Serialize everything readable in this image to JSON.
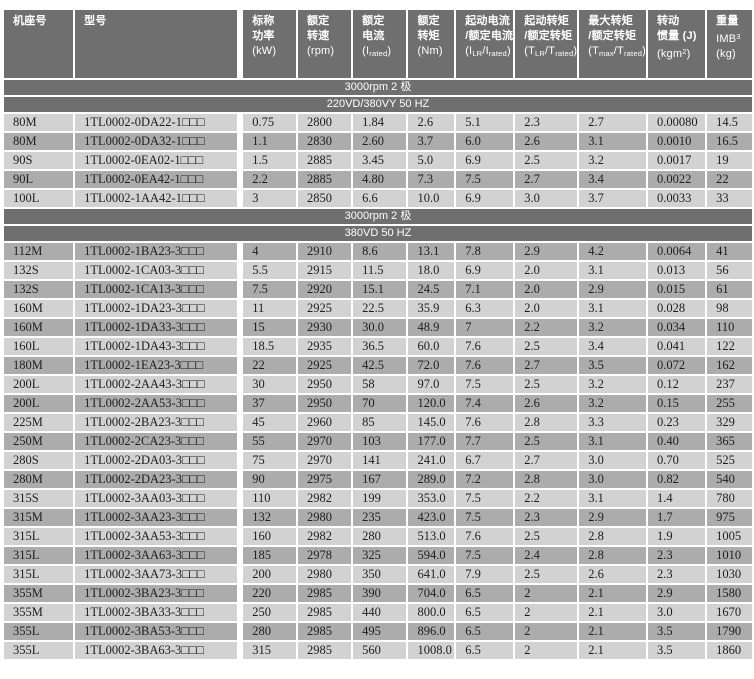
{
  "colors": {
    "header_bg": "#6f6f6f",
    "band_bg": "#6f6f6f",
    "row_light": "#d2d2d2",
    "row_dark": "#acacac",
    "header_text": "#ffffff",
    "data_text": "#1e1e1e",
    "page_bg": "#ffffff"
  },
  "table": {
    "columns": [
      {
        "id": "frame",
        "lines": [
          "机座号"
        ]
      },
      {
        "id": "model",
        "lines": [
          "型号"
        ]
      },
      {
        "id": "power-kw",
        "lines": [
          "标称",
          "功率",
          "(kW)"
        ]
      },
      {
        "id": "speed-rpm",
        "lines": [
          "额定",
          "转速",
          "(rpm)"
        ]
      },
      {
        "id": "current",
        "lines": [
          "额定",
          "电流",
          "(I_{rated})"
        ]
      },
      {
        "id": "torque-nm",
        "lines": [
          "额定",
          "转矩",
          "(Nm)"
        ]
      },
      {
        "id": "ilr-ratio",
        "lines": [
          "起动电流",
          "/额定电流",
          "(I_{LR}/I_{rated})"
        ]
      },
      {
        "id": "tlr-ratio",
        "lines": [
          "起动转矩",
          "/额定转矩",
          "(T_{LR}/T_{rated})"
        ]
      },
      {
        "id": "tmax-ratio",
        "lines": [
          "最大转矩",
          "/额定转矩",
          "(T_{max}/T_{rated})"
        ]
      },
      {
        "id": "inertia",
        "lines": [
          "转动",
          "惯量 (J)",
          "(kgm^{2})"
        ]
      },
      {
        "id": "weight",
        "lines": [
          "重量",
          "IMB^{3}",
          "(kg)"
        ]
      }
    ],
    "sections": [
      {
        "bands": [
          "3000rpm 2 极",
          "220VD/380VY  50 HZ"
        ],
        "rows": [
          [
            "80M",
            "1TL0002-0DA22-1□□□",
            "0.75",
            "2800",
            "1.84",
            "2.6",
            "5.1",
            "2.3",
            "2.7",
            "0.00080",
            "14.5"
          ],
          [
            "80M",
            "1TL0002-0DA32-1□□□",
            "1.1",
            "2830",
            "2.60",
            "3.7",
            "6.0",
            "2.6",
            "3.1",
            "0.0010",
            "16.5"
          ],
          [
            "90S",
            "1TL0002-0EA02-1□□□",
            "1.5",
            "2885",
            "3.45",
            "5.0",
            "6.9",
            "2.5",
            "3.2",
            "0.0017",
            "19"
          ],
          [
            "90L",
            "1TL0002-0EA42-1□□□",
            "2.2",
            "2885",
            "4.80",
            "7.3",
            "7.5",
            "2.7",
            "3.4",
            "0.0022",
            "22"
          ],
          [
            "100L",
            "1TL0002-1AA42-1□□□",
            "3",
            "2850",
            "6.6",
            "10.0",
            "6.9",
            "3.0",
            "3.7",
            "0.0033",
            "33"
          ]
        ]
      },
      {
        "bands": [
          "3000rpm 2 极",
          "380VD  50 HZ"
        ],
        "rows": [
          [
            "112M",
            "1TL0002-1BA23-3□□□",
            "4",
            "2910",
            "8.6",
            "13.1",
            "7.8",
            "2.9",
            "4.2",
            "0.0064",
            "41"
          ],
          [
            "132S",
            "1TL0002-1CA03-3□□□",
            "5.5",
            "2915",
            "11.5",
            "18.0",
            "6.9",
            "2.0",
            "3.1",
            "0.013",
            "56"
          ],
          [
            "132S",
            "1TL0002-1CA13-3□□□",
            "7.5",
            "2920",
            "15.1",
            "24.5",
            "7.1",
            "2.0",
            "2.9",
            "0.015",
            "61"
          ],
          [
            "160M",
            "1TL0002-1DA23-3□□□",
            "11",
            "2925",
            "22.5",
            "35.9",
            "6.3",
            "2.0",
            "3.1",
            "0.028",
            "98"
          ],
          [
            "160M",
            "1TL0002-1DA33-3□□□",
            "15",
            "2930",
            "30.0",
            "48.9",
            "7",
            "2.2",
            "3.2",
            "0.034",
            "110"
          ],
          [
            "160L",
            "1TL0002-1DA43-3□□□",
            "18.5",
            "2935",
            "36.5",
            "60.0",
            "7.6",
            "2.5",
            "3.4",
            "0.041",
            "122"
          ],
          [
            "180M",
            "1TL0002-1EA23-3□□□",
            "22",
            "2925",
            "42.5",
            "72.0",
            "7.6",
            "2.7",
            "3.5",
            "0.072",
            "162"
          ],
          [
            "200L",
            "1TL0002-2AA43-3□□□",
            "30",
            "2950",
            "58",
            "97.0",
            "7.5",
            "2.5",
            "3.2",
            "0.12",
            "237"
          ],
          [
            "200L",
            "1TL0002-2AA53-3□□□",
            "37",
            "2950",
            "70",
            "120.0",
            "7.4",
            "2.6",
            "3.2",
            "0.15",
            "255"
          ],
          [
            "225M",
            "1TL0002-2BA23-3□□□",
            "45",
            "2960",
            "85",
            "145.0",
            "7.6",
            "2.8",
            "3.3",
            "0.23",
            "329"
          ],
          [
            "250M",
            "1TL0002-2CA23-3□□□",
            "55",
            "2970",
            "103",
            "177.0",
            "7.7",
            "2.5",
            "3.1",
            "0.40",
            "365"
          ],
          [
            "280S",
            "1TL0002-2DA03-3□□□",
            "75",
            "2970",
            "141",
            "241.0",
            "6.7",
            "2.7",
            "3.0",
            "0.70",
            "525"
          ],
          [
            "280M",
            "1TL0002-2DA23-3□□□",
            "90",
            "2975",
            "167",
            "289.0",
            "7.2",
            "2.8",
            "3.0",
            "0.82",
            "540"
          ],
          [
            "315S",
            "1TL0002-3AA03-3□□□",
            "110",
            "2982",
            "199",
            "353.0",
            "7.5",
            "2.2",
            "3.1",
            "1.4",
            "780"
          ],
          [
            "315M",
            "1TL0002-3AA23-3□□□",
            "132",
            "2980",
            "235",
            "423.0",
            "7.5",
            "2.3",
            "2.9",
            "1.7",
            "975"
          ],
          [
            "315L",
            "1TL0002-3AA53-3□□□",
            "160",
            "2982",
            "280",
            "513.0",
            "7.6",
            "2.5",
            "2.8",
            "1.9",
            "1005"
          ],
          [
            "315L",
            "1TL0002-3AA63-3□□□",
            "185",
            "2978",
            "325",
            "594.0",
            "7.5",
            "2.4",
            "2.8",
            "2.3",
            "1010"
          ],
          [
            "315L",
            "1TL0002-3AA73-3□□□",
            "200",
            "2980",
            "350",
            "641.0",
            "7.9",
            "2.5",
            "2.6",
            "2.3",
            "1030"
          ],
          [
            "355M",
            "1TL0002-3BA23-3□□□",
            "220",
            "2985",
            "390",
            "704.0",
            "6.5",
            "2",
            "2.1",
            "2.9",
            "1580"
          ],
          [
            "355M",
            "1TL0002-3BA33-3□□□",
            "250",
            "2985",
            "440",
            "800.0",
            "6.5",
            "2",
            "2.1",
            "3.0",
            "1670"
          ],
          [
            "355L",
            "1TL0002-3BA53-3□□□",
            "280",
            "2985",
            "495",
            "896.0",
            "6.5",
            "2",
            "2.1",
            "3.5",
            "1790"
          ],
          [
            "355L",
            "1TL0002-3BA63-3□□□",
            "315",
            "2985",
            "560",
            "1008.0",
            "6.5",
            "2",
            "2.1",
            "3.5",
            "1860"
          ]
        ]
      }
    ]
  }
}
